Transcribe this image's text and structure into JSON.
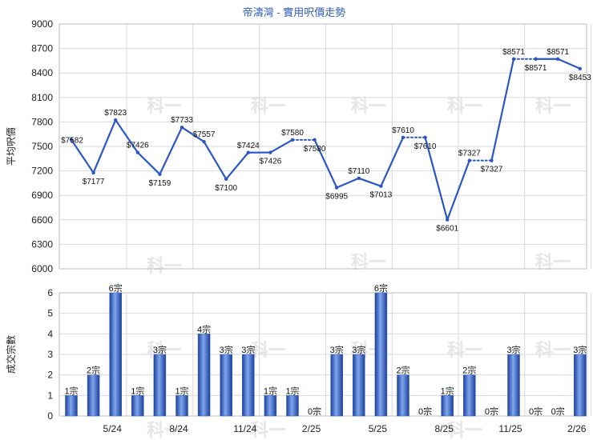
{
  "chart_data": [
    {
      "type": "line",
      "title": "帝濤灣 - 實用呎價走勢",
      "ylabel": "平均呎價",
      "ylim": [
        6000,
        9000
      ],
      "yticks": [
        6000,
        6300,
        6600,
        6900,
        7200,
        7500,
        7800,
        8100,
        8400,
        8700,
        9000
      ],
      "x_tick_labels": [
        "5/24",
        "8/24",
        "11/24",
        "2/25",
        "5/25",
        "8/25",
        "11/25",
        "2/26"
      ],
      "x_tick_positions": [
        2,
        5,
        8,
        11,
        14,
        17,
        20,
        23
      ],
      "x_count": 24,
      "series": [
        {
          "color": "#2a56c6",
          "points": [
            {
              "x": 0,
              "y": 7582,
              "label": "$7582",
              "pos": "left"
            },
            {
              "x": 1,
              "y": 7177,
              "label": "$7177",
              "pos": "below"
            },
            {
              "x": 2,
              "y": 7823,
              "label": "$7823",
              "pos": "above"
            },
            {
              "x": 3,
              "y": 7426,
              "label": "$7426",
              "pos": "above"
            },
            {
              "x": 4,
              "y": 7159,
              "label": "$7159",
              "pos": "below"
            },
            {
              "x": 5,
              "y": 7733,
              "label": "$7733",
              "pos": "above"
            },
            {
              "x": 6,
              "y": 7557,
              "label": "$7557",
              "pos": "above"
            },
            {
              "x": 7,
              "y": 7100,
              "label": "$7100",
              "pos": "below"
            },
            {
              "x": 8,
              "y": 7424,
              "label": "$7424",
              "pos": "above"
            },
            {
              "x": 9,
              "y": 7426,
              "label": "$7426",
              "pos": "below"
            },
            {
              "x": 10,
              "y": 7580,
              "label": "$7580",
              "pos": "above"
            },
            {
              "x": 11,
              "y": 7580,
              "label": "$7580",
              "pos": "below",
              "carried": true
            },
            {
              "x": 12,
              "y": 6995,
              "label": "$6995",
              "pos": "below"
            },
            {
              "x": 13,
              "y": 7110,
              "label": "$7110",
              "pos": "above"
            },
            {
              "x": 14,
              "y": 7013,
              "label": "$7013",
              "pos": "below"
            },
            {
              "x": 15,
              "y": 7610,
              "label": "$7610",
              "pos": "above"
            },
            {
              "x": 16,
              "y": 7610,
              "label": "$7610",
              "pos": "below",
              "carried": true
            },
            {
              "x": 17,
              "y": 6601,
              "label": "$6601",
              "pos": "below"
            },
            {
              "x": 18,
              "y": 7327,
              "label": "$7327",
              "pos": "above"
            },
            {
              "x": 19,
              "y": 7327,
              "label": "$7327",
              "pos": "below",
              "carried": true
            },
            {
              "x": 20,
              "y": 8571,
              "label": "$8571",
              "pos": "above"
            },
            {
              "x": 21,
              "y": 8571,
              "label": "$8571",
              "pos": "below",
              "carried": true
            },
            {
              "x": 22,
              "y": 8571,
              "label": "$8571",
              "pos": "above"
            },
            {
              "x": 23,
              "y": 8453,
              "label": "$8453",
              "pos": "below"
            }
          ]
        }
      ],
      "grid": true
    },
    {
      "type": "bar",
      "ylabel": "成交宗數",
      "ylim": [
        0,
        6
      ],
      "yticks": [
        0,
        1,
        2,
        3,
        4,
        5,
        6
      ],
      "values": [
        1,
        2,
        6,
        1,
        3,
        1,
        4,
        3,
        3,
        1,
        1,
        0,
        3,
        3,
        6,
        2,
        0,
        1,
        2,
        0,
        3,
        0,
        0,
        3
      ],
      "labels": [
        "1宗",
        "2宗",
        "6宗",
        "1宗",
        "3宗",
        "1宗",
        "4宗",
        "3宗",
        "3宗",
        "1宗",
        "1宗",
        "0宗",
        "3宗",
        "3宗",
        "6宗",
        "2宗",
        "0宗",
        "1宗",
        "2宗",
        "0宗",
        "3宗",
        "0宗",
        "0宗",
        "3宗"
      ],
      "bar_color": "#2f5fc0",
      "grid": true
    }
  ],
  "watermark": "科一"
}
